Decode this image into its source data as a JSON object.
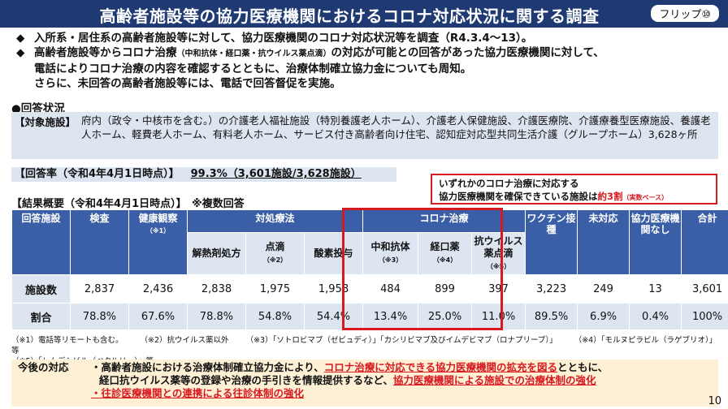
{
  "header": {
    "title": "高齢者施設等の協力医療機関におけるコロナ対応状況に関する調査",
    "badge": "フリップ⑩"
  },
  "intro": {
    "bullet1": "入所系・居住系の高齢者施設等に対して、協力医療機関のコロナ対応状況等を調査（R4.3.4～13）。",
    "bullet2_a": "高齢者施設等からコロナ治療",
    "bullet2_small": "（中和抗体・経口薬・抗ウイルス薬点滴）",
    "bullet2_b": "の対応が可能との回答があった協力医療機関に対して、",
    "line3": "電話によりコロナ治療の内容を確認するとともに、治療体制確立協力金についても周知。",
    "line4": "さらに、未回答の高齢者施設等には、電話で回答督促を実施。"
  },
  "response": {
    "heading": "●回答状況",
    "target_label": "【対象施設】",
    "target_text": "府内（政令・中核市を含む。）の介護老人福祉施設（特別養護老人ホーム）、介護老人保健施設、介護医療院、介護療養型医療施設、養護老人ホーム、軽費老人ホーム、有料老人ホーム、サービス付き高齢者向け住宅、認知症対応型共同生活介護（グループホーム）3,628ヶ所",
    "rate_label": "【回答率（令和4年4月1日時点）】",
    "rate_value": "99.3%（3,601施設/3,628施設）"
  },
  "callout": {
    "line1": "いずれかのコロナ治療に対応する",
    "line2_a": "協力医療機関を確保できている施設は",
    "line2_red": "約3割",
    "line2_small": "（実数ベース）"
  },
  "summary": {
    "heading": "【結果概要（令和4年4月1日時点）】　※複数回答",
    "headers": {
      "respondents": "回答施設",
      "inspection": "検査",
      "health": "健康観察",
      "health_note": "（※1）",
      "symptomatic": "対処療法",
      "antipyretic": "解熱剤処方",
      "drip": "点滴",
      "drip_note": "（※2）",
      "oxygen": "酸素投与",
      "corona": "コロナ治療",
      "antibody": "中和抗体",
      "antibody_note": "（※3）",
      "oral": "経口薬",
      "oral_note": "（※4）",
      "antiviral": "抗ウイルス薬点滴",
      "antiviral_note": "（※5）",
      "vaccine": "ワクチン接種",
      "none": "未対応",
      "no_partner": "協力医療機関なし",
      "total": "合計"
    },
    "rows": [
      {
        "label": "施設数",
        "values": [
          "2,837",
          "2,436",
          "2,838",
          "1,975",
          "1,958",
          "484",
          "899",
          "397",
          "3,223",
          "249",
          "13",
          "3,601"
        ]
      },
      {
        "label": "割合",
        "values": [
          "78.8%",
          "67.6%",
          "78.8%",
          "54.8%",
          "54.4%",
          "13.4%",
          "25.0%",
          "11.0%",
          "89.5%",
          "6.9%",
          "0.4%",
          "100%"
        ]
      }
    ]
  },
  "footnotes": {
    "n1": "（※1）電話等リモートも含む。",
    "n2": "（※2）抗ウイルス薬以外",
    "n3": "（※3）「ソトロビマブ（ゼビュディ）」「カシリビマブ及びイムデビマブ（ロナプリーブ）」",
    "n4": "（※4）「モルヌピラビル（ラゲブリオ）」等",
    "n5": "（※5）「レムデシビル（ベクルリー）」等"
  },
  "future": {
    "label": "今後の対応",
    "l1_a": "・高齢者施設における治療体制確立協力金により、",
    "l1_red": "コロナ治療に対応できる協力医療機関の拡充を図る",
    "l1_b": "とともに、",
    "l2_a": "経口抗ウイルス薬等の登録や治療の手引きを情報提供するなど、",
    "l2_red": "協力医療機関による施設での治療体制の強化",
    "l3_red": "・往診医療機関との連携による往診体制の強化"
  },
  "page_number": "10"
}
